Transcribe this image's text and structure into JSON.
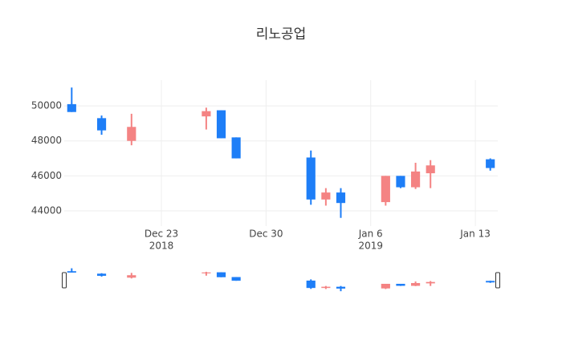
{
  "chart_data": {
    "type": "candlestick",
    "title": "리노공업",
    "x": [
      "2018-12-17",
      "2018-12-19",
      "2018-12-21",
      "2018-12-26",
      "2018-12-27",
      "2018-12-28",
      "2019-01-02",
      "2019-01-03",
      "2019-01-04",
      "2019-01-07",
      "2019-01-08",
      "2019-01-09",
      "2019-01-10",
      "2019-01-14"
    ],
    "open": [
      50100,
      49300,
      48000,
      49400,
      49750,
      48200,
      47050,
      44650,
      45050,
      44500,
      46000,
      45350,
      46150,
      46950
    ],
    "high": [
      51050,
      49450,
      49550,
      49900,
      49750,
      48200,
      47450,
      45300,
      45300,
      46000,
      46000,
      46750,
      46900,
      47000
    ],
    "low": [
      49650,
      48350,
      47750,
      48650,
      48150,
      47000,
      44350,
      44300,
      43600,
      44300,
      45300,
      45250,
      45300,
      46300
    ],
    "close": [
      49650,
      48600,
      48800,
      49700,
      48150,
      47000,
      44650,
      45050,
      44450,
      46000,
      45350,
      46250,
      46600,
      46450
    ],
    "increasing_color": "#f48383",
    "decreasing_color": "#1e7ef7",
    "xlim": [
      "2018-12-16 12:00",
      "2019-01-14 12:00"
    ],
    "xticks": [
      {
        "value": "2018-12-23",
        "label": "Dec 23"
      },
      {
        "value": "2018-12-30",
        "label": "Dec 30"
      },
      {
        "value": "2019-01-06",
        "label": "Jan 6"
      },
      {
        "value": "2019-01-13",
        "label": "Jan 13"
      }
    ],
    "year_labels": [
      {
        "value": "2018-12-23",
        "label": "2018"
      },
      {
        "value": "2019-01-06",
        "label": "2019"
      }
    ],
    "ylim": [
      43130,
      51470
    ],
    "yticks": [
      44000,
      46000,
      48000,
      50000
    ],
    "grid": true,
    "range_slider": true
  }
}
